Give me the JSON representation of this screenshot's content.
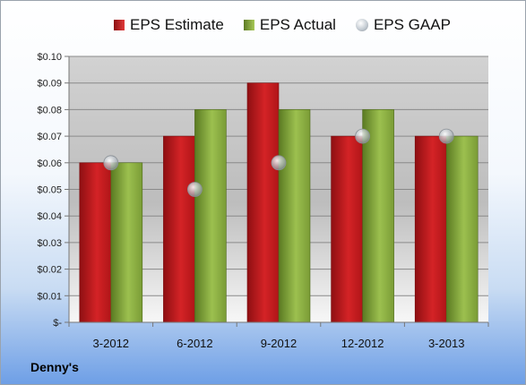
{
  "company": "Denny's",
  "colors": {
    "estimate": "#c8191c",
    "actual": "#8cb444",
    "gaap": "#b9c0c7"
  },
  "chart_data": {
    "type": "bar",
    "categories": [
      "3-2012",
      "6-2012",
      "9-2012",
      "12-2012",
      "3-2013"
    ],
    "series": [
      {
        "name": "EPS Estimate",
        "values": [
          0.06,
          0.07,
          0.09,
          0.07,
          0.07
        ]
      },
      {
        "name": "EPS Actual",
        "values": [
          0.06,
          0.08,
          0.08,
          0.08,
          0.07
        ]
      }
    ],
    "markers": {
      "name": "EPS GAAP",
      "values": [
        0.06,
        0.05,
        0.06,
        0.07,
        0.07
      ]
    },
    "y_ticks": [
      "$-",
      "$0.01",
      "$0.02",
      "$0.03",
      "$0.04",
      "$0.05",
      "$0.06",
      "$0.07",
      "$0.08",
      "$0.09",
      "$0.10"
    ],
    "ylim": [
      0,
      0.1
    ],
    "grid": true,
    "legend_position": "top"
  }
}
